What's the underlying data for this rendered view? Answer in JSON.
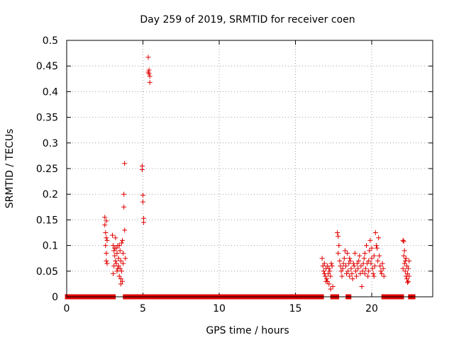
{
  "chart_data": {
    "type": "scatter",
    "title": "Day 259 of 2019, SRMTID for receiver coen",
    "xlabel": "GPS time / hours",
    "ylabel": "SRMTID / TECUs",
    "xlim": [
      0,
      24
    ],
    "ylim": [
      0,
      0.5
    ],
    "x_ticks": [
      0,
      5,
      10,
      15,
      20
    ],
    "x_tick_labels": [
      "0",
      "5",
      "10",
      "15",
      "20"
    ],
    "y_ticks": [
      0,
      0.05,
      0.1,
      0.15,
      0.2,
      0.25,
      0.3,
      0.35,
      0.4,
      0.45,
      0.5
    ],
    "y_tick_labels": [
      "0",
      "0.05",
      "0.1",
      "0.15",
      "0.2",
      "0.25",
      "0.3",
      "0.35",
      "0.4",
      "0.45",
      "0.5"
    ],
    "grid": true,
    "marker": "+",
    "color": "#e00000",
    "series": [
      {
        "name": "SRMTID",
        "points": [
          [
            2.5,
            0.155
          ],
          [
            2.5,
            0.14
          ],
          [
            2.55,
            0.125
          ],
          [
            2.6,
            0.148
          ],
          [
            2.6,
            0.115
          ],
          [
            2.55,
            0.1
          ],
          [
            2.6,
            0.085
          ],
          [
            2.6,
            0.07
          ],
          [
            2.65,
            0.11
          ],
          [
            2.65,
            0.065
          ],
          [
            3.0,
            0.12
          ],
          [
            3.05,
            0.1
          ],
          [
            3.1,
            0.09
          ],
          [
            3.15,
            0.08
          ],
          [
            3.1,
            0.06
          ],
          [
            3.2,
            0.115
          ],
          [
            3.2,
            0.07
          ],
          [
            3.25,
            0.095
          ],
          [
            3.3,
            0.085
          ],
          [
            3.3,
            0.05
          ],
          [
            3.35,
            0.1
          ],
          [
            3.4,
            0.075
          ],
          [
            3.4,
            0.06
          ],
          [
            3.45,
            0.04
          ],
          [
            3.5,
            0.09
          ],
          [
            3.5,
            0.055
          ],
          [
            3.55,
            0.035
          ],
          [
            3.55,
            0.07
          ],
          [
            3.6,
            0.105
          ],
          [
            3.6,
            0.05
          ],
          [
            3.65,
            0.03
          ],
          [
            3.65,
            0.11
          ],
          [
            3.7,
            0.085
          ],
          [
            3.7,
            0.065
          ],
          [
            3.75,
            0.175
          ],
          [
            3.75,
            0.2
          ],
          [
            3.8,
            0.26
          ],
          [
            3.8,
            0.13
          ],
          [
            3.85,
            0.075
          ],
          [
            3.05,
            0.045
          ],
          [
            3.15,
            0.095
          ],
          [
            3.25,
            0.065
          ],
          [
            3.45,
            0.1
          ],
          [
            3.55,
            0.025
          ],
          [
            3.35,
            0.055
          ],
          [
            4.95,
            0.255
          ],
          [
            4.95,
            0.248
          ],
          [
            5.0,
            0.198
          ],
          [
            5.0,
            0.185
          ],
          [
            5.05,
            0.153
          ],
          [
            5.05,
            0.145
          ],
          [
            5.35,
            0.467
          ],
          [
            5.4,
            0.442
          ],
          [
            5.4,
            0.435
          ],
          [
            5.45,
            0.43
          ],
          [
            5.45,
            0.418
          ],
          [
            5.35,
            0.438
          ],
          [
            16.75,
            0.075
          ],
          [
            16.8,
            0.06
          ],
          [
            16.85,
            0.05
          ],
          [
            16.9,
            0.045
          ],
          [
            16.95,
            0.04
          ],
          [
            17.0,
            0.055
          ],
          [
            17.05,
            0.035
          ],
          [
            17.1,
            0.03
          ],
          [
            17.15,
            0.045
          ],
          [
            17.2,
            0.025
          ],
          [
            17.25,
            0.05
          ],
          [
            17.3,
            0.04
          ],
          [
            17.35,
            0.065
          ],
          [
            17.4,
            0.06
          ],
          [
            17.45,
            0.02
          ],
          [
            17.3,
            0.015
          ],
          [
            17.2,
            0.055
          ],
          [
            17.1,
            0.06
          ],
          [
            16.9,
            0.065
          ],
          [
            17.0,
            0.03
          ],
          [
            17.75,
            0.125
          ],
          [
            17.8,
            0.118
          ],
          [
            17.85,
            0.1
          ],
          [
            17.8,
            0.085
          ],
          [
            17.9,
            0.07
          ],
          [
            17.95,
            0.06
          ],
          [
            18.0,
            0.05
          ],
          [
            18.05,
            0.04
          ],
          [
            18.1,
            0.055
          ],
          [
            18.15,
            0.065
          ],
          [
            18.2,
            0.075
          ],
          [
            18.3,
            0.06
          ],
          [
            18.35,
            0.045
          ],
          [
            18.4,
            0.085
          ],
          [
            18.45,
            0.05
          ],
          [
            18.5,
            0.065
          ],
          [
            18.55,
            0.04
          ],
          [
            18.6,
            0.07
          ],
          [
            18.65,
            0.055
          ],
          [
            18.7,
            0.045
          ],
          [
            18.8,
            0.065
          ],
          [
            18.85,
            0.06
          ],
          [
            18.9,
            0.085
          ],
          [
            18.95,
            0.05
          ],
          [
            19.0,
            0.04
          ],
          [
            19.1,
            0.055
          ],
          [
            19.15,
            0.07
          ],
          [
            19.2,
            0.08
          ],
          [
            19.25,
            0.045
          ],
          [
            19.3,
            0.06
          ],
          [
            19.4,
            0.05
          ],
          [
            19.45,
            0.065
          ],
          [
            19.5,
            0.075
          ],
          [
            19.55,
            0.045
          ],
          [
            19.6,
            0.055
          ],
          [
            19.65,
            0.1
          ],
          [
            19.7,
            0.065
          ],
          [
            19.75,
            0.04
          ],
          [
            19.8,
            0.07
          ],
          [
            19.85,
            0.09
          ],
          [
            19.9,
            0.11
          ],
          [
            19.95,
            0.065
          ],
          [
            20.0,
            0.075
          ],
          [
            20.05,
            0.055
          ],
          [
            20.1,
            0.045
          ],
          [
            20.15,
            0.08
          ],
          [
            20.2,
            0.06
          ],
          [
            20.25,
            0.125
          ],
          [
            20.3,
            0.1
          ],
          [
            20.35,
            0.095
          ],
          [
            20.4,
            0.07
          ],
          [
            20.45,
            0.115
          ],
          [
            20.5,
            0.08
          ],
          [
            20.55,
            0.06
          ],
          [
            20.6,
            0.05
          ],
          [
            20.65,
            0.045
          ],
          [
            20.7,
            0.065
          ],
          [
            20.75,
            0.055
          ],
          [
            20.8,
            0.04
          ],
          [
            19.35,
            0.02
          ],
          [
            18.25,
            0.09
          ],
          [
            18.75,
            0.035
          ],
          [
            19.05,
            0.065
          ],
          [
            19.55,
            0.085
          ],
          [
            20.15,
            0.04
          ],
          [
            18.55,
            0.075
          ],
          [
            20.0,
            0.095
          ],
          [
            19.8,
            0.05
          ],
          [
            22.05,
            0.11
          ],
          [
            22.1,
            0.108
          ],
          [
            22.1,
            0.08
          ],
          [
            22.15,
            0.065
          ],
          [
            22.2,
            0.05
          ],
          [
            22.2,
            0.07
          ],
          [
            22.25,
            0.04
          ],
          [
            22.3,
            0.035
          ],
          [
            22.3,
            0.06
          ],
          [
            22.35,
            0.045
          ],
          [
            22.4,
            0.03
          ],
          [
            22.4,
            0.055
          ],
          [
            22.45,
            0.07
          ],
          [
            22.45,
            0.04
          ],
          [
            22.15,
            0.09
          ],
          [
            22.25,
            0.075
          ],
          [
            22.35,
            0.028
          ],
          [
            22.05,
            0.055
          ]
        ],
        "zero_segments": [
          [
            0.05,
            2.5
          ],
          [
            2.75,
            3.05
          ],
          [
            3.85,
            4.95
          ],
          [
            5.05,
            5.3
          ],
          [
            5.45,
            16.7
          ],
          [
            17.45,
            17.7
          ],
          [
            18.45,
            18.5
          ],
          [
            20.8,
            21.95
          ],
          [
            22.55,
            22.7
          ]
        ]
      }
    ]
  }
}
